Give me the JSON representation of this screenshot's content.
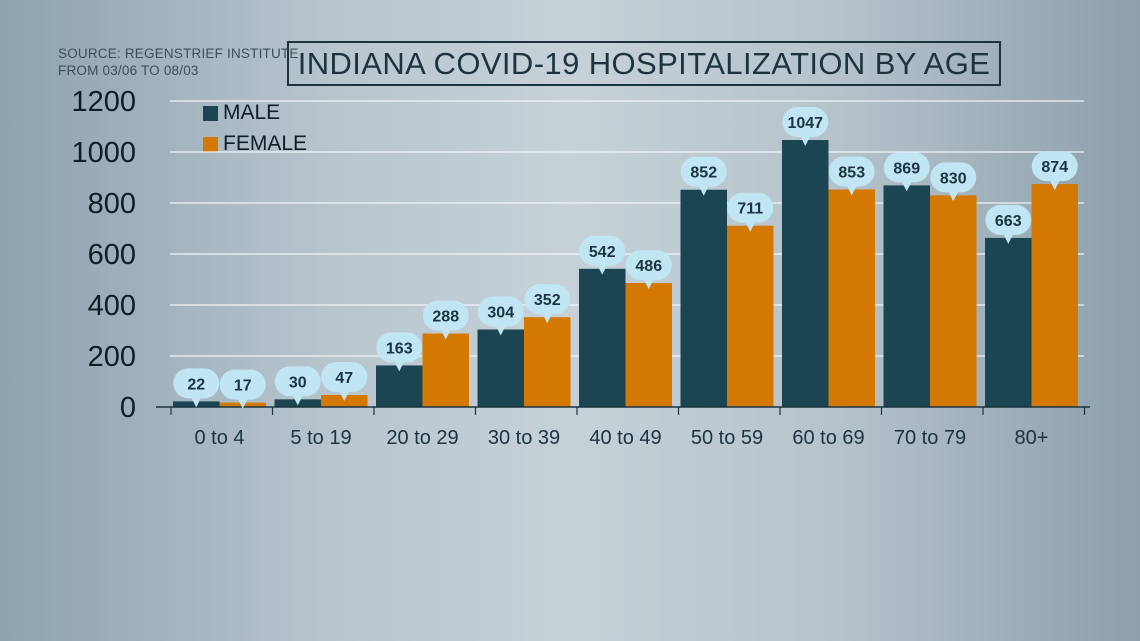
{
  "source": {
    "line1": "SOURCE: REGENSTRIEF INSTITUTE",
    "line2": "FROM 03/06 TO 08/03"
  },
  "colors": {
    "male": "#1b4552",
    "female": "#d37800",
    "bubble": "#bfe6f2",
    "grid": "#f2f5f7",
    "axis": "#1b3440"
  },
  "chart_data": {
    "type": "bar",
    "title": "INDIANA COVID-19 HOSPITALIZATION BY AGE",
    "categories": [
      "0 to 4",
      "5 to 19",
      "20 to 29",
      "30 to 39",
      "40 to 49",
      "50 to 59",
      "60 to 69",
      "70 to 79",
      "80+"
    ],
    "series": [
      {
        "name": "MALE",
        "values": [
          22,
          30,
          163,
          304,
          542,
          852,
          1047,
          869,
          663
        ]
      },
      {
        "name": "FEMALE",
        "values": [
          17,
          47,
          288,
          352,
          486,
          711,
          853,
          830,
          874
        ]
      }
    ],
    "ylim": [
      0,
      1200
    ],
    "yticks": [
      "0",
      "200",
      "400",
      "600",
      "800",
      "1000",
      "1200"
    ],
    "grid": true,
    "legend": "top-left"
  }
}
